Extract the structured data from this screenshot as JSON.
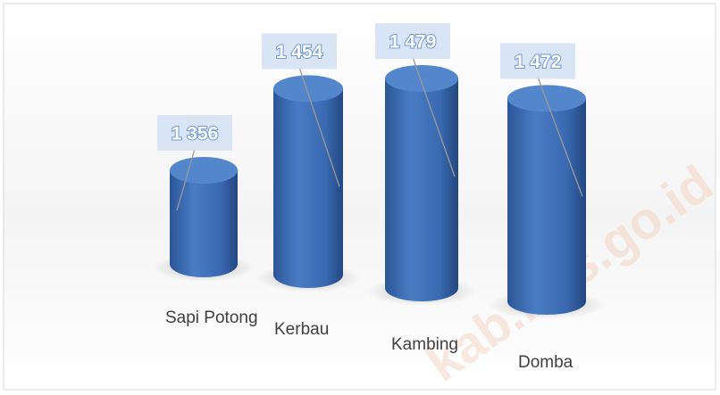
{
  "chart_data": {
    "type": "bar",
    "categories": [
      "Sapi Potong",
      "Kerbau",
      "Kambing",
      "Domba"
    ],
    "values": [
      1356,
      1454,
      1479,
      1472
    ],
    "value_labels": [
      "1 356",
      "1 454",
      "1 479",
      "1 472"
    ],
    "color": "#3f6fb6"
  },
  "watermark": "kab.bps.go.id"
}
